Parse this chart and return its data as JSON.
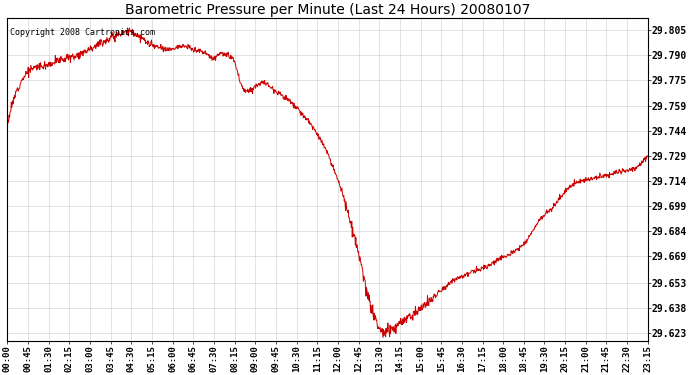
{
  "title": "Barometric Pressure per Minute (Last 24 Hours) 20080107",
  "copyright_text": "Copyright 2008 Cartronics.com",
  "line_color": "#cc0000",
  "background_color": "#ffffff",
  "grid_color": "#cccccc",
  "yticks": [
    29.623,
    29.638,
    29.653,
    29.669,
    29.684,
    29.699,
    29.714,
    29.729,
    29.744,
    29.759,
    29.775,
    29.79,
    29.805
  ],
  "ylim": [
    29.618,
    29.812
  ],
  "xtick_labels": [
    "00:00",
    "00:45",
    "01:30",
    "02:15",
    "03:00",
    "03:45",
    "04:30",
    "05:15",
    "06:00",
    "06:45",
    "07:30",
    "08:15",
    "09:00",
    "09:45",
    "10:30",
    "11:15",
    "12:00",
    "12:45",
    "13:30",
    "14:15",
    "15:00",
    "15:45",
    "16:30",
    "17:15",
    "18:00",
    "18:45",
    "19:30",
    "20:15",
    "21:00",
    "21:45",
    "22:30",
    "23:15"
  ],
  "keypoints_x": [
    0,
    60,
    90,
    120,
    150,
    180,
    210,
    240,
    270,
    300,
    315,
    330,
    360,
    390,
    420,
    450,
    465,
    480,
    495,
    510,
    525,
    540,
    570,
    600,
    630,
    660,
    690,
    720,
    735,
    750,
    765,
    780,
    795,
    810,
    825,
    840,
    855,
    870,
    900,
    930,
    960,
    990,
    1020,
    1050,
    1080,
    1110,
    1140,
    1170,
    1200,
    1230,
    1260,
    1290,
    1320,
    1350,
    1380,
    1410,
    1439
  ],
  "keypoints_y": [
    29.748,
    29.782,
    29.784,
    29.787,
    29.789,
    29.793,
    29.797,
    29.801,
    29.804,
    29.8,
    29.797,
    29.795,
    29.793,
    29.795,
    29.793,
    29.79,
    29.788,
    29.791,
    29.789,
    29.786,
    29.772,
    29.768,
    29.773,
    29.769,
    29.763,
    29.755,
    29.745,
    29.73,
    29.72,
    29.71,
    29.695,
    29.68,
    29.663,
    29.645,
    29.632,
    29.624,
    29.624,
    29.626,
    29.632,
    29.638,
    29.645,
    29.652,
    29.657,
    29.66,
    29.663,
    29.668,
    29.672,
    29.68,
    29.692,
    29.7,
    29.71,
    29.714,
    29.716,
    29.718,
    29.72,
    29.722,
    29.73
  ],
  "noise_std": 0.0008,
  "noise_seed": 12
}
